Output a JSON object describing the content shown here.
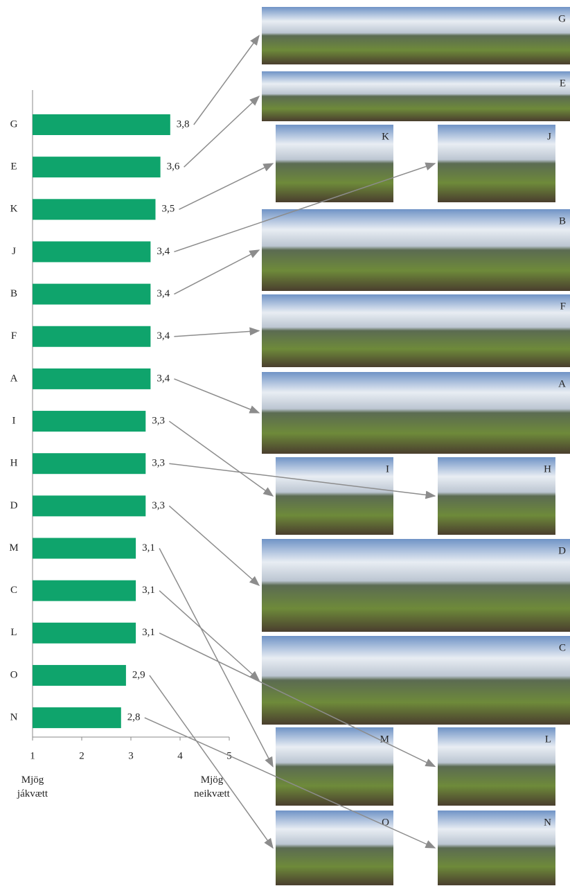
{
  "chart_data": {
    "type": "bar",
    "orientation": "horizontal",
    "categories": [
      "G",
      "E",
      "K",
      "J",
      "B",
      "F",
      "A",
      "I",
      "H",
      "D",
      "M",
      "C",
      "L",
      "O",
      "N"
    ],
    "values": [
      3.8,
      3.6,
      3.5,
      3.4,
      3.4,
      3.4,
      3.4,
      3.3,
      3.3,
      3.3,
      3.1,
      3.1,
      3.1,
      2.9,
      2.8
    ],
    "value_labels": [
      "3,8",
      "3,6",
      "3,5",
      "3,4",
      "3,4",
      "3,4",
      "3,4",
      "3,3",
      "3,3",
      "3,3",
      "3,1",
      "3,1",
      "3,1",
      "2,9",
      "2,8"
    ],
    "color": "#0fa46c",
    "xlim": [
      1,
      5
    ],
    "xticks": [
      1,
      2,
      3,
      4,
      5
    ],
    "x_low_label": "Mjög jákvætt",
    "x_high_label": "Mjög neikvætt"
  },
  "photos": [
    "G",
    "E",
    "K",
    "J",
    "B",
    "F",
    "A",
    "I",
    "H",
    "D",
    "C",
    "M",
    "L",
    "O",
    "N"
  ]
}
